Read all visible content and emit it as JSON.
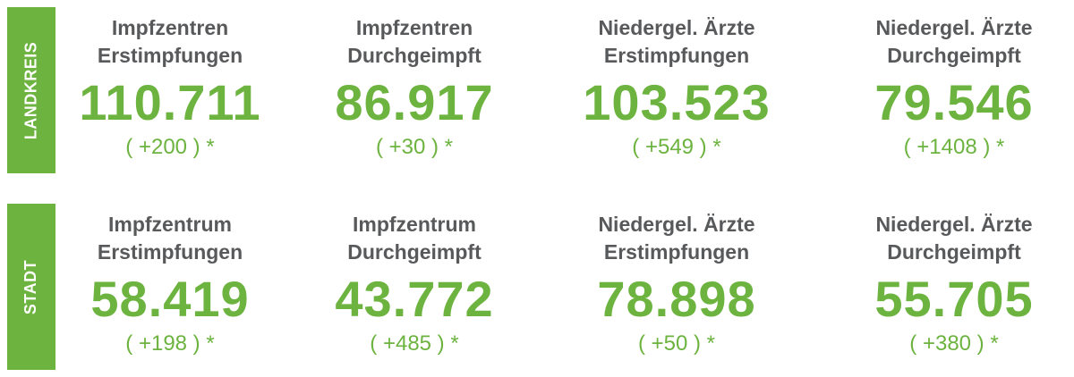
{
  "landkreis": {
    "label": "LANDKREIS",
    "cards": [
      {
        "title1": "Impfzentren",
        "title2": "Erstimpfungen",
        "value": "110.711",
        "delta": "( +200 ) *"
      },
      {
        "title1": "Impfzentren",
        "title2": "Durchgeimpft",
        "value": "86.917",
        "delta": "( +30 ) *"
      },
      {
        "title1": "Niedergel. Ärzte",
        "title2": "Erstimpfungen",
        "value": "103.523",
        "delta": "( +549 ) *"
      },
      {
        "title1": "Niedergel. Ärzte",
        "title2": "Durchgeimpft",
        "value": "79.546",
        "delta": "( +1408 ) *"
      }
    ]
  },
  "stadt": {
    "label": "STADT",
    "cards": [
      {
        "title1": "Impfzentrum",
        "title2": "Erstimpfungen",
        "value": "58.419",
        "delta": "( +198 ) *"
      },
      {
        "title1": "Impfzentrum",
        "title2": "Durchgeimpft",
        "value": "43.772",
        "delta": "( +485 ) *"
      },
      {
        "title1": "Niedergel. Ärzte",
        "title2": "Erstimpfungen",
        "value": "78.898",
        "delta": "( +50 ) *"
      },
      {
        "title1": "Niedergel. Ärzte",
        "title2": "Durchgeimpft",
        "value": "55.705",
        "delta": "( +380 ) *"
      }
    ]
  },
  "colors": {
    "accent_green": "#6cb33f",
    "title_gray": "#58595b",
    "background": "#ffffff"
  }
}
